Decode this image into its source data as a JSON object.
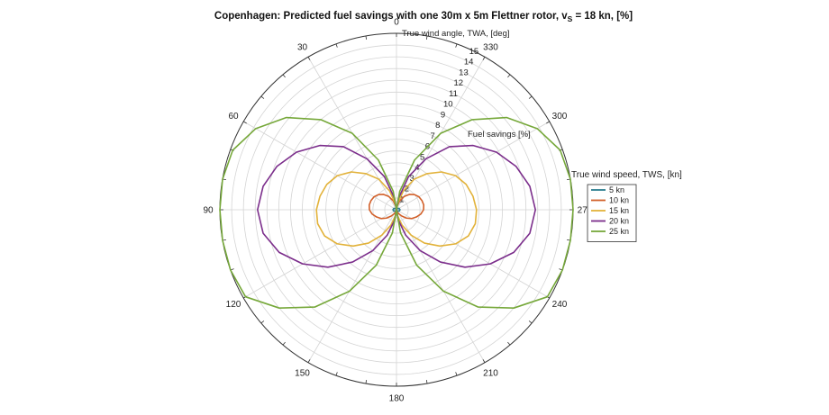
{
  "chart_data": {
    "type": "polar-line",
    "title_main": "Copenhagen: Predicted fuel savings with one 30m x 5m Flettner rotor, v",
    "title_sub": "S",
    "title_tail": " = 18 kn, [%]",
    "angle_axis_label": "True wind angle, TWA, [deg]",
    "radial_axis_label": "Fuel savings [%]",
    "angle_direction": "counterclockwise",
    "zero_location": "top",
    "angle_ticks": [
      0,
      30,
      60,
      90,
      120,
      150,
      180,
      210,
      240,
      270,
      300,
      330
    ],
    "radial_ticks": [
      1,
      2,
      3,
      4,
      5,
      6,
      7,
      8,
      9,
      10,
      11,
      12,
      13,
      14,
      15
    ],
    "rlim": [
      0,
      15
    ],
    "grid": true,
    "legend_title": "True wind speed, TWS, [kn]",
    "legend_position": "right",
    "series": [
      {
        "name": "5 kn",
        "color": "#2b7d8f",
        "points": [
          [
            0,
            0
          ],
          [
            30,
            0.1
          ],
          [
            60,
            0.25
          ],
          [
            90,
            0.3
          ],
          [
            120,
            0.25
          ],
          [
            150,
            0.1
          ],
          [
            180,
            0
          ]
        ]
      },
      {
        "name": "10 kn",
        "color": "#d2602a",
        "points": [
          [
            0,
            0
          ],
          [
            10,
            0.3
          ],
          [
            20,
            0.8
          ],
          [
            30,
            1.3
          ],
          [
            40,
            1.7
          ],
          [
            50,
            2
          ],
          [
            60,
            2.2
          ],
          [
            70,
            2.3
          ],
          [
            80,
            2.35
          ],
          [
            90,
            2.3
          ],
          [
            100,
            2.1
          ],
          [
            110,
            1.8
          ],
          [
            120,
            1.5
          ],
          [
            130,
            1.1
          ],
          [
            140,
            0.7
          ],
          [
            150,
            0.4
          ],
          [
            160,
            0.2
          ],
          [
            170,
            0.05
          ],
          [
            180,
            0
          ]
        ]
      },
      {
        "name": "15 kn",
        "color": "#e2b23a",
        "points": [
          [
            0,
            0
          ],
          [
            10,
            0.5
          ],
          [
            20,
            1.7
          ],
          [
            30,
            3
          ],
          [
            40,
            4
          ],
          [
            50,
            5
          ],
          [
            60,
            5.8
          ],
          [
            70,
            6.3
          ],
          [
            80,
            6.6
          ],
          [
            90,
            6.8
          ],
          [
            100,
            6.8
          ],
          [
            110,
            6.5
          ],
          [
            120,
            5.8
          ],
          [
            130,
            4.8
          ],
          [
            140,
            3.7
          ],
          [
            150,
            2.5
          ],
          [
            160,
            1.4
          ],
          [
            170,
            0.5
          ],
          [
            180,
            0
          ]
        ]
      },
      {
        "name": "20 kn",
        "color": "#7b2d8b",
        "points": [
          [
            0,
            0
          ],
          [
            10,
            1
          ],
          [
            20,
            3
          ],
          [
            30,
            5
          ],
          [
            40,
            7
          ],
          [
            50,
            8.5
          ],
          [
            60,
            9.8
          ],
          [
            70,
            10.8
          ],
          [
            80,
            11.5
          ],
          [
            90,
            11.8
          ],
          [
            100,
            11.5
          ],
          [
            110,
            10.6
          ],
          [
            120,
            9.2
          ],
          [
            130,
            7.6
          ],
          [
            140,
            5.8
          ],
          [
            150,
            4
          ],
          [
            160,
            2.3
          ],
          [
            170,
            0.9
          ],
          [
            180,
            0
          ]
        ]
      },
      {
        "name": "25 kn",
        "color": "#76a83a",
        "points": [
          [
            0,
            0
          ],
          [
            10,
            1.6
          ],
          [
            20,
            4.5
          ],
          [
            30,
            7.5
          ],
          [
            40,
            10
          ],
          [
            50,
            12.2
          ],
          [
            60,
            13.8
          ],
          [
            70,
            14.8
          ],
          [
            80,
            15
          ],
          [
            90,
            15
          ],
          [
            100,
            15
          ],
          [
            110,
            15
          ],
          [
            120,
            14.8
          ],
          [
            130,
            13
          ],
          [
            140,
            10.8
          ],
          [
            150,
            8
          ],
          [
            160,
            5
          ],
          [
            170,
            2
          ],
          [
            180,
            0
          ]
        ]
      }
    ]
  }
}
